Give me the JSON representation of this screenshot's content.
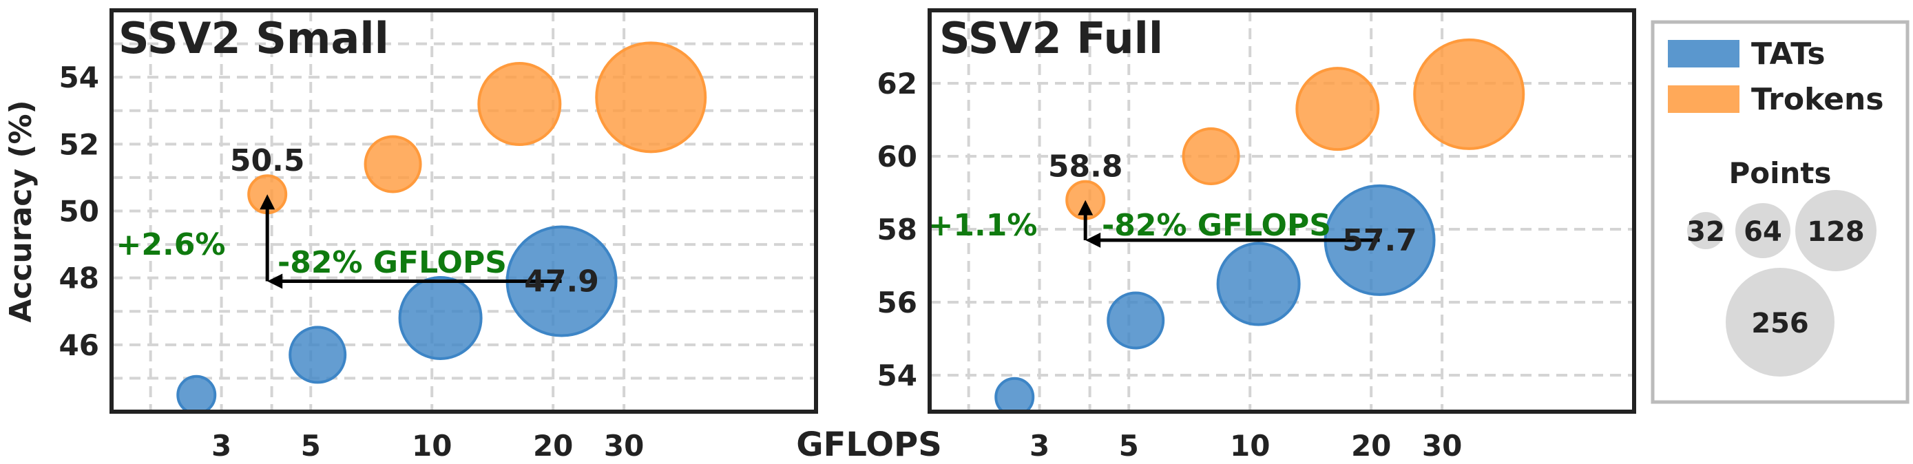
{
  "chart_data": [
    {
      "type": "scatter",
      "title": "SSV2 Small",
      "xlabel": "GFLOPS",
      "ylabel": "Accuracy (%)",
      "x_scale": "log",
      "xlim": [
        1.6,
        90
      ],
      "ylim": [
        44.0,
        56.0
      ],
      "x_ticks": [
        3,
        5,
        10,
        20,
        30
      ],
      "y_ticks": [
        46,
        48,
        50,
        52,
        54
      ],
      "grid": true,
      "series": [
        {
          "name": "TATs",
          "color": "#3d85c6",
          "points": [
            {
              "x": 2.6,
              "y": 44.5,
              "points": 32
            },
            {
              "x": 5.2,
              "y": 45.7,
              "points": 64
            },
            {
              "x": 10.5,
              "y": 46.8,
              "points": 128
            },
            {
              "x": 21.0,
              "y": 47.9,
              "points": 256
            }
          ]
        },
        {
          "name": "Trokens",
          "color": "#ff9a3c",
          "points": [
            {
              "x": 3.9,
              "y": 50.5,
              "points": 32
            },
            {
              "x": 8.0,
              "y": 51.4,
              "points": 64
            },
            {
              "x": 16.5,
              "y": 53.2,
              "points": 128
            },
            {
              "x": 35.0,
              "y": 53.4,
              "points": 256
            }
          ]
        }
      ],
      "annotations": [
        {
          "text": "50.5",
          "x": 3.9,
          "y": 50.5
        },
        {
          "text": "47.9",
          "x": 21.0,
          "y": 47.9
        },
        {
          "text": "+2.6%",
          "color": "#0f7a0f"
        },
        {
          "text": "-82% GFLOPS",
          "color": "#0f7a0f"
        }
      ]
    },
    {
      "type": "scatter",
      "title": "SSV2 Full",
      "xlabel": "GFLOPS",
      "ylabel": "",
      "x_scale": "log",
      "xlim": [
        1.6,
        90
      ],
      "ylim": [
        53.0,
        64.0
      ],
      "x_ticks": [
        3,
        5,
        10,
        20,
        30
      ],
      "y_ticks": [
        54,
        56,
        58,
        60,
        62
      ],
      "grid": true,
      "series": [
        {
          "name": "TATs",
          "color": "#3d85c6",
          "points": [
            {
              "x": 2.6,
              "y": 53.4,
              "points": 32
            },
            {
              "x": 5.2,
              "y": 55.5,
              "points": 64
            },
            {
              "x": 10.5,
              "y": 56.5,
              "points": 128
            },
            {
              "x": 21.0,
              "y": 57.7,
              "points": 256
            }
          ]
        },
        {
          "name": "Trokens",
          "color": "#ff9a3c",
          "points": [
            {
              "x": 3.9,
              "y": 58.8,
              "points": 32
            },
            {
              "x": 8.0,
              "y": 60.0,
              "points": 64
            },
            {
              "x": 16.5,
              "y": 61.3,
              "points": 128
            },
            {
              "x": 35.0,
              "y": 61.7,
              "points": 256
            }
          ]
        }
      ],
      "annotations": [
        {
          "text": "58.8",
          "x": 3.9,
          "y": 58.8
        },
        {
          "text": "57.7",
          "x": 21.0,
          "y": 57.7
        },
        {
          "text": "+1.1%",
          "color": "#0f7a0f"
        },
        {
          "text": "-82% GFLOPS",
          "color": "#0f7a0f"
        }
      ]
    }
  ],
  "legend": {
    "entries": [
      {
        "label": "TATs",
        "color": "#3d85c6"
      },
      {
        "label": "Trokens",
        "color": "#ff9a3c"
      }
    ],
    "size_title": "Points",
    "size_entries": [
      32,
      64,
      128,
      256
    ],
    "size_color": "#d9d9d9",
    "placement": "right"
  },
  "shared_xlabel": "GFLOPS"
}
